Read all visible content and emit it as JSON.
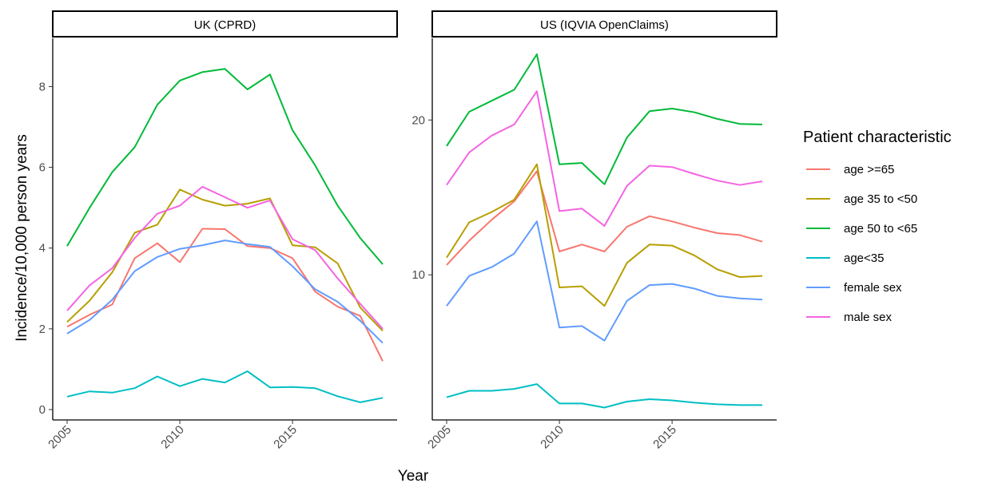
{
  "figure": {
    "ylabel": "Incidence/10,000 person years",
    "xlabel": "Year",
    "legend_title": "Patient characteristic",
    "legend_position": "right"
  },
  "colors": {
    "age >=65": "#F8766D",
    "age 35 to <50": "#B79F00",
    "age 50 to <65": "#00BA38",
    "age<35": "#00BFC4",
    "female sex": "#619CFF",
    "male sex": "#F564E3"
  },
  "chart_data": [
    {
      "type": "line",
      "title": "UK (CPRD)",
      "xlabel": "Year",
      "ylabel": "Incidence/10,000 person years",
      "xlim": [
        2005,
        2019
      ],
      "ylim": [
        0,
        8.8
      ],
      "y_scale": "linear",
      "xticks": [
        2005,
        2010,
        2015
      ],
      "yticks": [
        0,
        2,
        4,
        6,
        8
      ],
      "x": [
        2005,
        2006,
        2007,
        2008,
        2009,
        2010,
        2011,
        2012,
        2013,
        2014,
        2015,
        2016,
        2017,
        2018,
        2019
      ],
      "series": [
        {
          "name": "age >=65",
          "values": [
            2.05,
            2.35,
            2.6,
            3.75,
            4.12,
            3.65,
            4.48,
            4.47,
            4.05,
            4.0,
            3.75,
            2.92,
            2.55,
            2.32,
            1.2
          ]
        },
        {
          "name": "age 35 to <50",
          "values": [
            2.17,
            2.7,
            3.4,
            4.38,
            4.58,
            5.45,
            5.2,
            5.05,
            5.1,
            5.23,
            4.07,
            4.02,
            3.62,
            2.53,
            1.95
          ]
        },
        {
          "name": "age 50 to <65",
          "values": [
            4.05,
            5.0,
            5.88,
            6.5,
            7.55,
            8.15,
            8.36,
            8.44,
            7.93,
            8.3,
            6.92,
            6.05,
            5.05,
            4.25,
            3.6
          ]
        },
        {
          "name": "age<35",
          "values": [
            0.32,
            0.45,
            0.42,
            0.53,
            0.82,
            0.58,
            0.76,
            0.67,
            0.95,
            0.55,
            0.56,
            0.53,
            0.33,
            0.18,
            0.29
          ]
        },
        {
          "name": "female sex",
          "values": [
            1.88,
            2.22,
            2.72,
            3.43,
            3.78,
            3.98,
            4.07,
            4.19,
            4.1,
            4.03,
            3.55,
            2.98,
            2.67,
            2.2,
            1.65
          ]
        },
        {
          "name": "male sex",
          "values": [
            2.45,
            3.08,
            3.5,
            4.25,
            4.85,
            5.05,
            5.52,
            5.26,
            5.0,
            5.18,
            4.22,
            3.95,
            3.25,
            2.62,
            2.0
          ]
        }
      ]
    },
    {
      "type": "line",
      "title": "US (IQVIA OpenClaims)",
      "xlabel": "Year",
      "ylabel": "Incidence/10,000 person years",
      "xlim": [
        2005,
        2019
      ],
      "ylim": [
        5.47,
        26.84
      ],
      "y_scale": "log",
      "xticks": [
        2005,
        2010,
        2015
      ],
      "yticks": [
        10,
        20
      ],
      "x": [
        2005,
        2006,
        2007,
        2008,
        2009,
        2010,
        2011,
        2012,
        2013,
        2014,
        2015,
        2016,
        2017,
        2018,
        2019
      ],
      "series": [
        {
          "name": "age >=65",
          "values": [
            10.45,
            11.65,
            12.8,
            13.9,
            15.9,
            11.1,
            11.45,
            11.1,
            12.4,
            13.0,
            12.7,
            12.35,
            12.05,
            11.95,
            11.6
          ]
        },
        {
          "name": "age 35 to <50",
          "values": [
            10.8,
            12.65,
            13.25,
            14.0,
            16.4,
            9.45,
            9.5,
            8.7,
            10.55,
            11.45,
            11.4,
            10.9,
            10.25,
            9.9,
            9.95
          ]
        },
        {
          "name": "age 50 to <65",
          "values": [
            17.8,
            20.75,
            21.8,
            22.9,
            26.84,
            16.4,
            16.5,
            15.0,
            18.5,
            20.8,
            21.05,
            20.7,
            20.1,
            19.65,
            19.6
          ]
        },
        {
          "name": "age<35",
          "values": [
            5.78,
            5.95,
            5.95,
            6.0,
            6.13,
            5.62,
            5.62,
            5.52,
            5.67,
            5.73,
            5.7,
            5.64,
            5.6,
            5.58,
            5.58
          ]
        },
        {
          "name": "female sex",
          "values": [
            8.7,
            9.95,
            10.35,
            11.0,
            12.7,
            7.9,
            7.95,
            7.45,
            8.9,
            9.55,
            9.6,
            9.4,
            9.1,
            9.0,
            8.95
          ]
        },
        {
          "name": "male sex",
          "values": [
            14.95,
            17.3,
            18.65,
            19.6,
            22.75,
            13.3,
            13.45,
            12.45,
            14.9,
            16.3,
            16.2,
            15.7,
            15.25,
            14.95,
            15.2
          ]
        }
      ]
    }
  ]
}
